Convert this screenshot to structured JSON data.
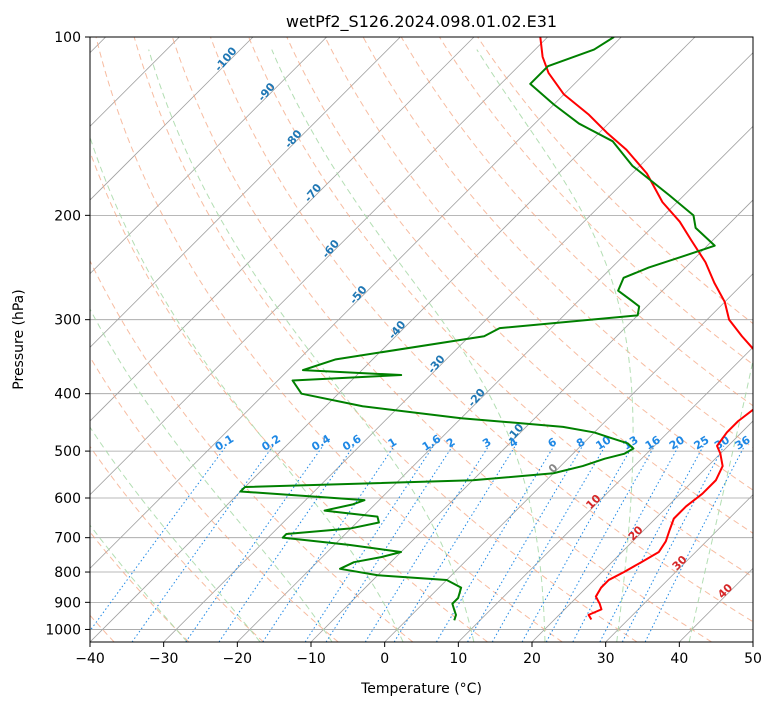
{
  "chart_data": {
    "type": "skew-t",
    "title": "wetPf2_S126.2024.098.01.02.E31",
    "xlabel": "Temperature (°C)",
    "ylabel": "Pressure (hPa)",
    "xlim": [
      -40,
      50
    ],
    "ylim_hpa": [
      1050,
      100
    ],
    "y_scale": "log",
    "x_ticks": [
      -40,
      -30,
      -20,
      -10,
      0,
      10,
      20,
      30,
      40,
      50
    ],
    "y_ticks": [
      100,
      200,
      300,
      400,
      500,
      600,
      700,
      800,
      900,
      1000
    ],
    "grid": true,
    "colors": {
      "temperature": "#ff0000",
      "dewpoint": "#008000",
      "isotherm": "#a0a0a0",
      "dry_adiabat": "#f4a582",
      "moist_adiabat": "#a6d8a6",
      "mixing_ratio": "#1e88e5",
      "dry_label": "#1f77b4",
      "theta_label": "#d62728"
    },
    "series": [
      {
        "name": "",
        "role": "temperature",
        "points": [
          [
            962,
            25
          ],
          [
            945,
            24
          ],
          [
            925,
            25
          ],
          [
            905,
            24
          ],
          [
            880,
            22.5
          ],
          [
            850,
            22
          ],
          [
            825,
            22
          ],
          [
            800,
            23
          ],
          [
            770,
            24
          ],
          [
            740,
            25
          ],
          [
            710,
            24.5
          ],
          [
            680,
            23.5
          ],
          [
            650,
            22.5
          ],
          [
            620,
            22.5
          ],
          [
            590,
            23
          ],
          [
            560,
            23
          ],
          [
            530,
            22
          ],
          [
            505,
            20
          ],
          [
            490,
            18.5
          ],
          [
            465,
            18
          ],
          [
            445,
            18
          ],
          [
            425,
            18.5
          ],
          [
            400,
            17.5
          ],
          [
            380,
            15
          ],
          [
            360,
            13
          ],
          [
            340,
            11
          ],
          [
            320,
            7
          ],
          [
            300,
            3
          ],
          [
            280,
            0
          ],
          [
            260,
            -4
          ],
          [
            240,
            -8
          ],
          [
            220,
            -13
          ],
          [
            205,
            -17
          ],
          [
            190,
            -22
          ],
          [
            170,
            -28
          ],
          [
            155,
            -34
          ],
          [
            145,
            -39
          ],
          [
            135,
            -44
          ],
          [
            125,
            -50
          ],
          [
            115,
            -55
          ],
          [
            108,
            -58
          ],
          [
            100,
            -61
          ]
        ]
      },
      {
        "name": "",
        "role": "dewpoint",
        "points": [
          [
            965,
            6.5
          ],
          [
            945,
            6
          ],
          [
            925,
            5
          ],
          [
            905,
            4
          ],
          [
            885,
            4
          ],
          [
            850,
            3
          ],
          [
            825,
            0
          ],
          [
            810,
            -10
          ],
          [
            790,
            -16
          ],
          [
            770,
            -15
          ],
          [
            755,
            -12
          ],
          [
            740,
            -10
          ],
          [
            720,
            -18
          ],
          [
            700,
            -28
          ],
          [
            690,
            -28
          ],
          [
            675,
            -20
          ],
          [
            660,
            -17
          ],
          [
            645,
            -18
          ],
          [
            630,
            -26
          ],
          [
            615,
            -23
          ],
          [
            605,
            -22
          ],
          [
            597,
            -29
          ],
          [
            585,
            -40
          ],
          [
            575,
            -40
          ],
          [
            560,
            -10
          ],
          [
            545,
            0
          ],
          [
            530,
            3
          ],
          [
            515,
            5
          ],
          [
            505,
            7
          ],
          [
            495,
            7.5
          ],
          [
            485,
            6
          ],
          [
            475,
            3
          ],
          [
            465,
            0
          ],
          [
            455,
            -5
          ],
          [
            440,
            -20
          ],
          [
            420,
            -35
          ],
          [
            400,
            -45
          ],
          [
            380,
            -48
          ],
          [
            372,
            -34
          ],
          [
            365,
            -48
          ],
          [
            350,
            -45
          ],
          [
            320,
            -28
          ],
          [
            310,
            -27
          ],
          [
            295,
            -10
          ],
          [
            285,
            -11
          ],
          [
            278,
            -13
          ],
          [
            268,
            -16
          ],
          [
            255,
            -17
          ],
          [
            245,
            -15
          ],
          [
            235,
            -12
          ],
          [
            225,
            -9
          ],
          [
            210,
            -14
          ],
          [
            200,
            -16
          ],
          [
            185,
            -22
          ],
          [
            165,
            -31
          ],
          [
            150,
            -37
          ],
          [
            140,
            -44
          ],
          [
            130,
            -50
          ],
          [
            120,
            -56
          ],
          [
            112,
            -56
          ],
          [
            105,
            -52
          ],
          [
            100,
            -51
          ]
        ]
      }
    ],
    "isotherms": [
      -160,
      -150,
      -140,
      -130,
      -120,
      -110,
      -100,
      -90,
      -80,
      -70,
      -60,
      -50,
      -40,
      -30,
      -20,
      -10,
      0,
      10,
      20,
      30,
      40,
      50
    ],
    "dry_adiabats_theta_c": [
      -60,
      -50,
      -40,
      -30,
      -20,
      -10,
      0,
      10,
      20,
      30,
      40,
      50,
      60,
      70,
      80,
      90,
      100,
      110,
      120
    ],
    "moist_adiabats_tstart_c": [
      -30,
      -20,
      -10,
      0,
      10,
      20,
      30,
      40,
      50
    ],
    "mixing_ratio_lines": {
      "values": [
        "0.1",
        "0.2",
        "0.4",
        "0.6",
        "1",
        "1.6",
        "2",
        "3",
        "4",
        "6",
        "8",
        "10",
        "13",
        "16",
        "20",
        "25",
        "30",
        "36"
      ],
      "label_pressure": 490
    },
    "dry_adiabat_labels": [
      {
        "text": "-100",
        "T": -100,
        "p": 110
      },
      {
        "text": "-90",
        "T": -90,
        "p": 125
      },
      {
        "text": "-80",
        "T": -80,
        "p": 150
      },
      {
        "text": "-70",
        "T": -70,
        "p": 185
      },
      {
        "text": "-60",
        "T": -60,
        "p": 230
      },
      {
        "text": "-50",
        "T": -50,
        "p": 275
      },
      {
        "text": "-40",
        "T": -40,
        "p": 315
      },
      {
        "text": "-30",
        "T": -30,
        "p": 360
      },
      {
        "text": "-20",
        "T": -20,
        "p": 410
      },
      {
        "text": "-10",
        "T": -10,
        "p": 470
      }
    ],
    "theta_labels": [
      {
        "text": "0",
        "T": 0,
        "p": 540,
        "cls": "gray"
      },
      {
        "text": "10",
        "T": 10,
        "p": 615
      },
      {
        "text": "20",
        "T": 20,
        "p": 695
      },
      {
        "text": "30",
        "T": 30,
        "p": 780
      },
      {
        "text": "40",
        "T": 40,
        "p": 870
      }
    ]
  }
}
